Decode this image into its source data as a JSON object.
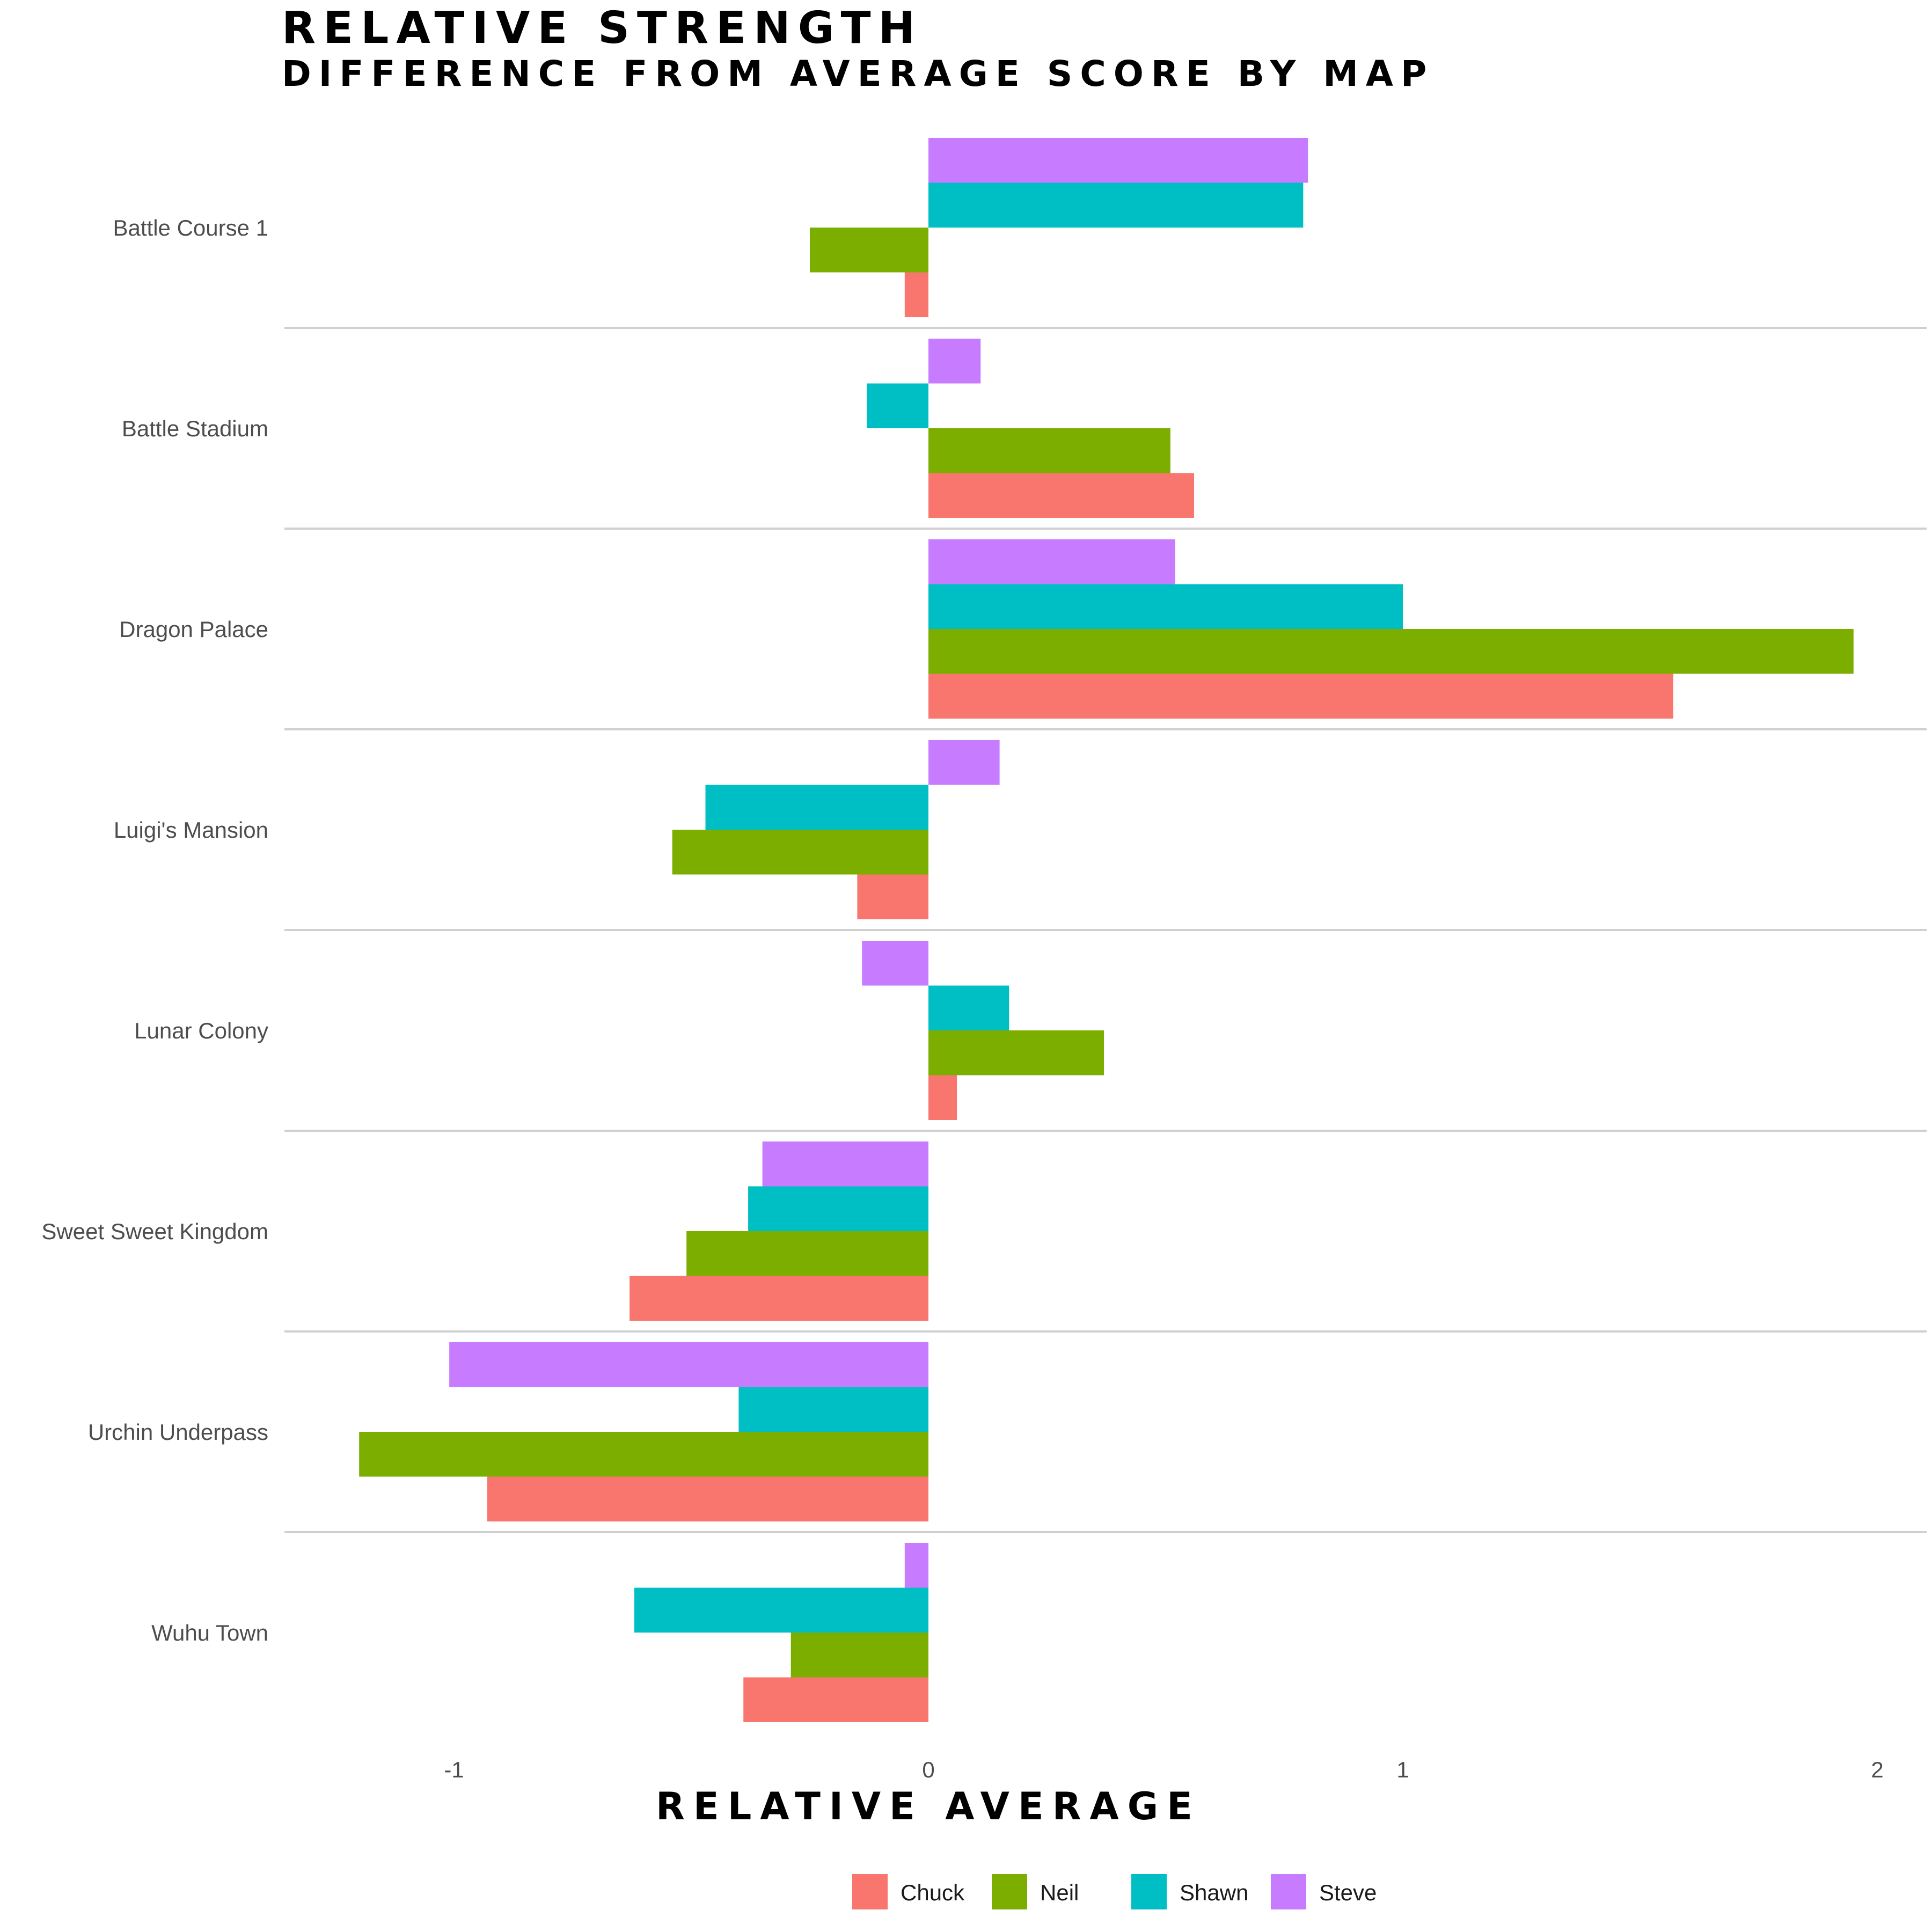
{
  "chart_data": {
    "type": "bar",
    "orientation": "horizontal",
    "title": "RELATIVE STRENGTH",
    "subtitle": "DIFFERENCE FROM AVERAGE SCORE BY MAP",
    "xlabel": "RELATIVE AVERAGE",
    "ylabel": "",
    "xlim": [
      -1.35,
      2.05
    ],
    "xticks": [
      -1,
      0,
      1,
      2
    ],
    "xtick_labels": [
      "-1",
      "0",
      "1",
      "2"
    ],
    "grid": "horizontal separators between categories",
    "legend_position": "bottom",
    "categories": [
      "Battle Course 1",
      "Battle Stadium",
      "Dragon Palace",
      "Luigi's Mansion",
      "Lunar Colony",
      "Sweet Sweet Kingdom",
      "Urchin Underpass",
      "Wuhu Town"
    ],
    "series": [
      {
        "name": "Chuck",
        "color": "#F8766D",
        "values": [
          -0.05,
          0.56,
          1.57,
          -0.15,
          0.06,
          -0.63,
          -0.93,
          -0.39
        ]
      },
      {
        "name": "Neil",
        "color": "#7CAE00",
        "values": [
          -0.25,
          0.51,
          1.95,
          -0.54,
          0.37,
          -0.51,
          -1.2,
          -0.29
        ]
      },
      {
        "name": "Shawn",
        "color": "#00BFC4",
        "values": [
          0.79,
          -0.13,
          1.0,
          -0.47,
          0.17,
          -0.38,
          -0.4,
          -0.62
        ]
      },
      {
        "name": "Steve",
        "color": "#C77CFF",
        "values": [
          0.8,
          0.11,
          0.52,
          0.15,
          -0.14,
          -0.35,
          -1.01,
          -0.05
        ]
      }
    ]
  }
}
